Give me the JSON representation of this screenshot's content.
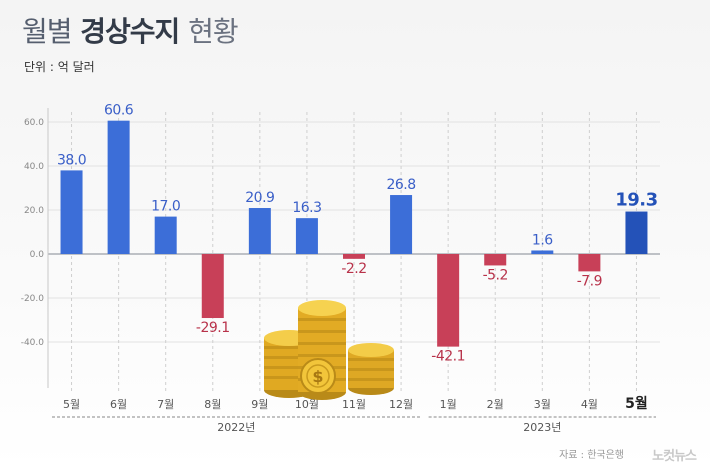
{
  "header": {
    "title_part1": "월별",
    "title_part2": "경상수지",
    "title_part3": "현황",
    "unit": "단위 : 억 달러"
  },
  "footer": {
    "source": "자료 : 한국은행",
    "brand": "노컷뉴스"
  },
  "colors": {
    "positive": "#3c6ed8",
    "positive_highlight": "#2452b8",
    "negative": "#c84058",
    "positive_label": "#3a5fc8",
    "negative_label": "#b8324a"
  },
  "chart_data": {
    "type": "bar",
    "categories": [
      "5월",
      "6월",
      "7월",
      "8월",
      "9월",
      "10월",
      "11월",
      "12월",
      "1월",
      "2월",
      "3월",
      "4월",
      "5월"
    ],
    "values": [
      38.0,
      60.6,
      17.0,
      -29.1,
      20.9,
      16.3,
      -2.2,
      26.8,
      -42.1,
      -5.2,
      1.6,
      -7.9,
      19.3
    ],
    "value_labels": [
      "38.0",
      "60.6",
      "17.0",
      "-29.1",
      "20.9",
      "16.3",
      "-2.2",
      "26.8",
      "-42.1",
      "-5.2",
      "1.6",
      "-7.9",
      "19.3"
    ],
    "highlight_index": 12,
    "ylim": [
      -60,
      60
    ],
    "yticks": [
      "60.0",
      "40.0",
      "20.0",
      "0.0",
      "-20.0",
      "-40.0"
    ],
    "ytick_values": [
      60,
      40,
      20,
      0,
      -20,
      -40
    ],
    "groups": [
      {
        "label": "2022년",
        "start": 0,
        "end": 7
      },
      {
        "label": "2023년",
        "start": 8,
        "end": 12
      }
    ],
    "grid": true
  }
}
